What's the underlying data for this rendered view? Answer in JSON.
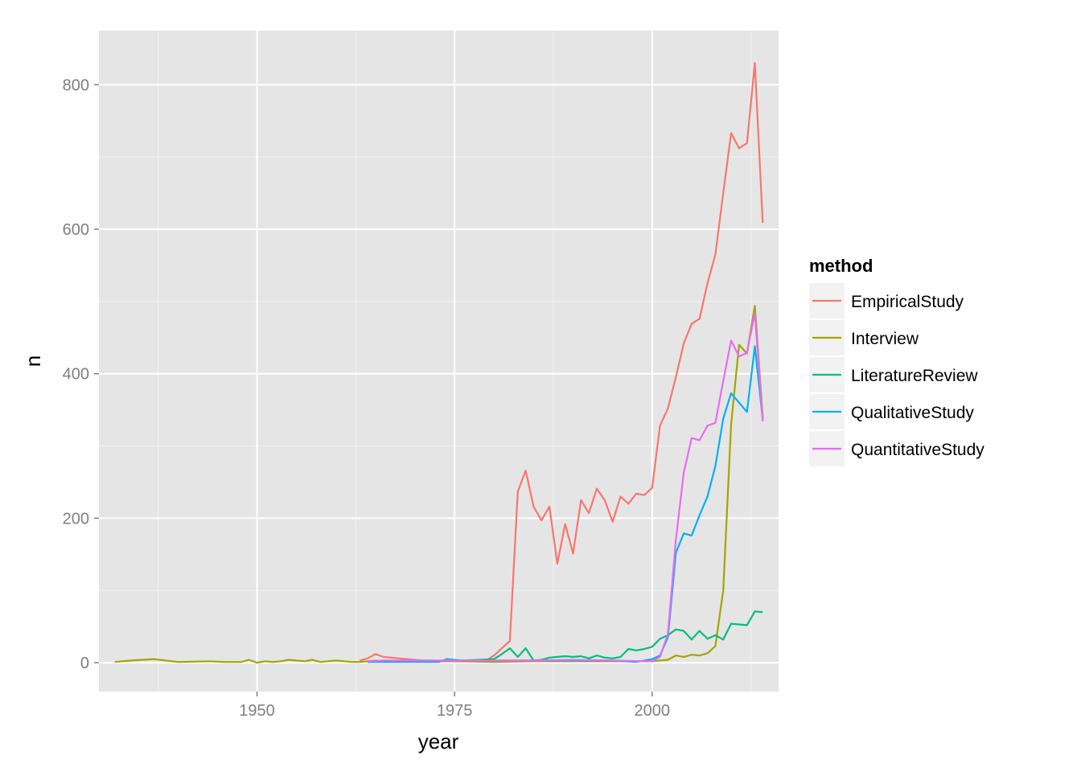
{
  "chart_data": {
    "type": "line",
    "title": "",
    "xlabel": "year",
    "ylabel": "n",
    "xlim": [
      1930,
      2016
    ],
    "ylim": [
      -40,
      875
    ],
    "x_ticks": [
      1950,
      1975,
      2000
    ],
    "x_tick_labels": [
      "1950",
      "1975",
      "2000"
    ],
    "y_ticks": [
      0,
      200,
      400,
      600,
      800
    ],
    "y_tick_labels": [
      "0",
      "200",
      "400",
      "600",
      "800"
    ],
    "grid": true,
    "legend": {
      "title": "method",
      "placement": "right"
    },
    "series": [
      {
        "name": "EmpiricalStudy",
        "color": "#F8766D",
        "points": [
          [
            1963,
            3
          ],
          [
            1964,
            6
          ],
          [
            1965,
            12
          ],
          [
            1966,
            8
          ],
          [
            1967,
            7
          ],
          [
            1968,
            6
          ],
          [
            1969,
            5
          ],
          [
            1970,
            4
          ],
          [
            1971,
            3
          ],
          [
            1972,
            3
          ],
          [
            1973,
            2
          ],
          [
            1974,
            2
          ],
          [
            1975,
            2
          ],
          [
            1976,
            2
          ],
          [
            1977,
            2
          ],
          [
            1978,
            2
          ],
          [
            1979,
            3
          ],
          [
            1980,
            10
          ],
          [
            1981,
            20
          ],
          [
            1982,
            30
          ],
          [
            1983,
            237
          ],
          [
            1984,
            266
          ],
          [
            1985,
            216
          ],
          [
            1986,
            197
          ],
          [
            1987,
            216
          ],
          [
            1988,
            137
          ],
          [
            1989,
            192
          ],
          [
            1990,
            151
          ],
          [
            1991,
            225
          ],
          [
            1992,
            207
          ],
          [
            1993,
            241
          ],
          [
            1994,
            225
          ],
          [
            1995,
            195
          ],
          [
            1996,
            230
          ],
          [
            1997,
            220
          ],
          [
            1998,
            234
          ],
          [
            1999,
            232
          ],
          [
            2000,
            242
          ],
          [
            2001,
            328
          ],
          [
            2002,
            352
          ],
          [
            2003,
            395
          ],
          [
            2004,
            442
          ],
          [
            2005,
            469
          ],
          [
            2006,
            476
          ],
          [
            2007,
            525
          ],
          [
            2008,
            565
          ],
          [
            2009,
            650
          ],
          [
            2010,
            733
          ],
          [
            2011,
            712
          ],
          [
            2012,
            719
          ],
          [
            2013,
            830
          ],
          [
            2014,
            609
          ]
        ]
      },
      {
        "name": "Interview",
        "color": "#A3A500",
        "points": [
          [
            1932,
            1
          ],
          [
            1934,
            3
          ],
          [
            1937,
            5
          ],
          [
            1940,
            1
          ],
          [
            1944,
            2
          ],
          [
            1946,
            1
          ],
          [
            1948,
            1
          ],
          [
            1949,
            4
          ],
          [
            1950,
            0
          ],
          [
            1951,
            2
          ],
          [
            1952,
            1
          ],
          [
            1953,
            2
          ],
          [
            1954,
            4
          ],
          [
            1955,
            3
          ],
          [
            1956,
            2
          ],
          [
            1957,
            4
          ],
          [
            1958,
            1
          ],
          [
            1959,
            2
          ],
          [
            1960,
            3
          ],
          [
            1961,
            2
          ],
          [
            1962,
            1
          ],
          [
            1963,
            1
          ],
          [
            1964,
            2
          ],
          [
            1965,
            3
          ],
          [
            1966,
            2
          ],
          [
            1967,
            2
          ],
          [
            1970,
            2
          ],
          [
            1975,
            2
          ],
          [
            1980,
            1
          ],
          [
            1985,
            2
          ],
          [
            1990,
            2
          ],
          [
            1995,
            2
          ],
          [
            1999,
            2
          ],
          [
            2000,
            2
          ],
          [
            2001,
            3
          ],
          [
            2002,
            4
          ],
          [
            2003,
            10
          ],
          [
            2004,
            8
          ],
          [
            2005,
            11
          ],
          [
            2006,
            10
          ],
          [
            2007,
            13
          ],
          [
            2008,
            23
          ],
          [
            2009,
            100
          ],
          [
            2010,
            330
          ],
          [
            2011,
            440
          ],
          [
            2012,
            428
          ],
          [
            2013,
            494
          ],
          [
            2014,
            340
          ]
        ]
      },
      {
        "name": "LiteratureReview",
        "color": "#00BF7D",
        "points": [
          [
            1964,
            1
          ],
          [
            1966,
            2
          ],
          [
            1970,
            2
          ],
          [
            1974,
            3
          ],
          [
            1976,
            3
          ],
          [
            1978,
            4
          ],
          [
            1980,
            5
          ],
          [
            1981,
            12
          ],
          [
            1982,
            20
          ],
          [
            1983,
            8
          ],
          [
            1984,
            20
          ],
          [
            1985,
            3
          ],
          [
            1986,
            4
          ],
          [
            1987,
            7
          ],
          [
            1988,
            8
          ],
          [
            1989,
            9
          ],
          [
            1990,
            8
          ],
          [
            1991,
            9
          ],
          [
            1992,
            6
          ],
          [
            1993,
            10
          ],
          [
            1994,
            7
          ],
          [
            1995,
            6
          ],
          [
            1996,
            8
          ],
          [
            1997,
            19
          ],
          [
            1998,
            17
          ],
          [
            1999,
            19
          ],
          [
            2000,
            22
          ],
          [
            2001,
            33
          ],
          [
            2002,
            38
          ],
          [
            2003,
            46
          ],
          [
            2004,
            44
          ],
          [
            2005,
            32
          ],
          [
            2006,
            44
          ],
          [
            2007,
            33
          ],
          [
            2008,
            38
          ],
          [
            2009,
            32
          ],
          [
            2010,
            54
          ],
          [
            2011,
            53
          ],
          [
            2012,
            52
          ],
          [
            2013,
            71
          ],
          [
            2014,
            70
          ]
        ]
      },
      {
        "name": "QualitativeStudy",
        "color": "#00B0F6",
        "points": [
          [
            1964,
            1
          ],
          [
            1966,
            1
          ],
          [
            1970,
            1
          ],
          [
            1973,
            1
          ],
          [
            1974,
            5
          ],
          [
            1976,
            3
          ],
          [
            1978,
            3
          ],
          [
            1980,
            3
          ],
          [
            1985,
            3
          ],
          [
            1990,
            3
          ],
          [
            1995,
            3
          ],
          [
            1998,
            1
          ],
          [
            1999,
            3
          ],
          [
            2000,
            5
          ],
          [
            2001,
            10
          ],
          [
            2002,
            35
          ],
          [
            2003,
            152
          ],
          [
            2004,
            179
          ],
          [
            2005,
            176
          ],
          [
            2006,
            204
          ],
          [
            2007,
            230
          ],
          [
            2008,
            272
          ],
          [
            2009,
            338
          ],
          [
            2010,
            373
          ],
          [
            2011,
            360
          ],
          [
            2012,
            347
          ],
          [
            2013,
            438
          ],
          [
            2014,
            337
          ]
        ]
      },
      {
        "name": "QuantitativeStudy",
        "color": "#E76BF3",
        "points": [
          [
            1964,
            2
          ],
          [
            1966,
            3
          ],
          [
            1970,
            3
          ],
          [
            1974,
            3
          ],
          [
            1976,
            3
          ],
          [
            1978,
            3
          ],
          [
            1980,
            3
          ],
          [
            1985,
            3
          ],
          [
            1990,
            4
          ],
          [
            1995,
            3
          ],
          [
            1999,
            2
          ],
          [
            2000,
            2
          ],
          [
            2001,
            8
          ],
          [
            2002,
            40
          ],
          [
            2003,
            170
          ],
          [
            2004,
            263
          ],
          [
            2005,
            311
          ],
          [
            2006,
            308
          ],
          [
            2007,
            328
          ],
          [
            2008,
            332
          ],
          [
            2009,
            390
          ],
          [
            2010,
            446
          ],
          [
            2011,
            424
          ],
          [
            2012,
            429
          ],
          [
            2013,
            484
          ],
          [
            2014,
            334
          ]
        ]
      }
    ]
  }
}
